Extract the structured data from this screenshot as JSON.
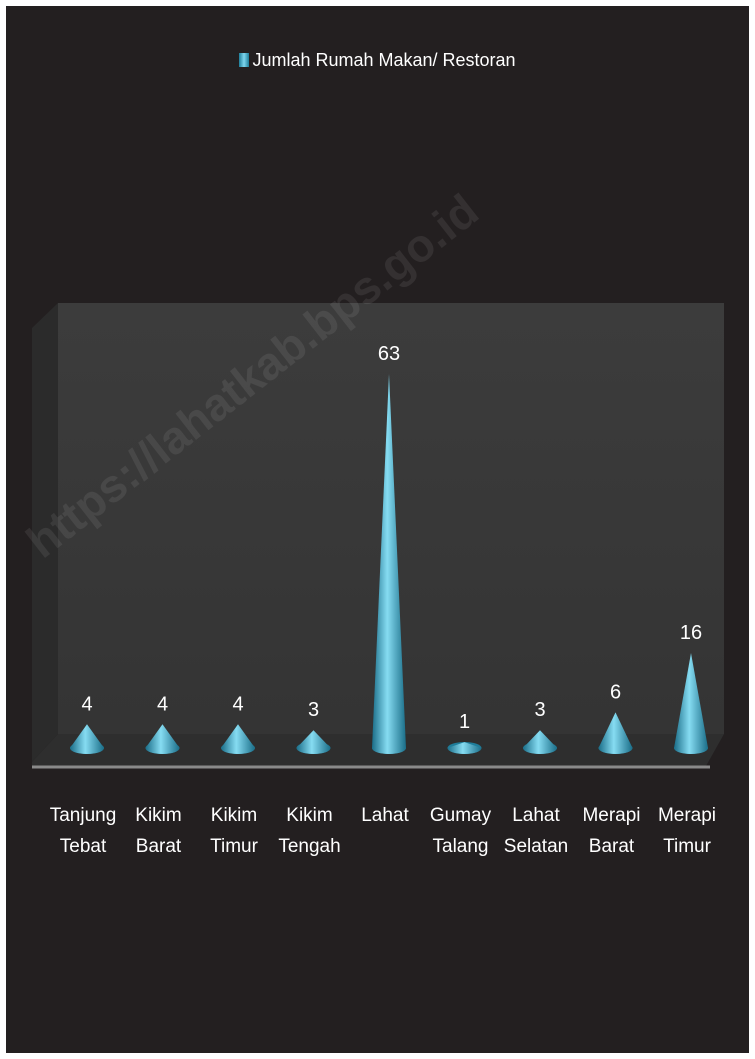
{
  "chart_data": {
    "type": "bar",
    "legend": "Jumlah Rumah Makan/ Restoran",
    "categories": [
      "Tanjung\nTebat",
      "Kikim\nBarat",
      "Kikim\nTimur",
      "Kikim\nTengah",
      "Lahat",
      "Gumay\nTalang",
      "Lahat\nSelatan",
      "Merapi\nBarat",
      "Merapi\nTimur"
    ],
    "series": [
      {
        "name": "Jumlah Rumah Makan/ Restoran",
        "values": [
          4,
          4,
          4,
          3,
          63,
          1,
          3,
          6,
          16
        ]
      }
    ],
    "data_labels": [
      "4",
      "4",
      "4",
      "3",
      "63",
      "1",
      "3",
      "6",
      "16"
    ],
    "ylim": [
      0,
      68
    ],
    "shape": "cone",
    "legend_position": "top",
    "grid": false
  },
  "watermark": "https://lahatkab.bps.go.id",
  "colors": {
    "background": "#231f20",
    "wall": "#3a3a3a",
    "floor": "#2e2e2e",
    "cone_dark": "#1f7d9a",
    "cone_light": "#7fd8f0",
    "text": "#ffffff"
  }
}
